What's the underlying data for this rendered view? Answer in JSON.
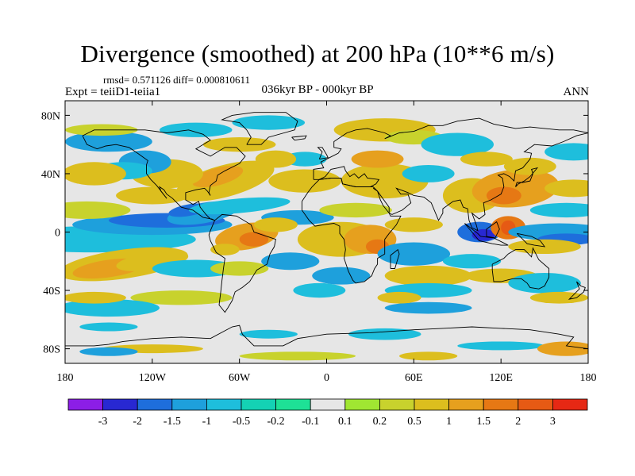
{
  "title": "Divergence (smoothed) at 200 hPa (10**6 m/s)",
  "stats_text": "rmsd= 0.571126 diff= 0.000810611",
  "experiment_text": "Expt = teiiD1-teiia1",
  "period_text": "036kyr BP - 000kyr BP",
  "season_text": "ANN",
  "chart_data": {
    "type": "heatmap",
    "projection": "cylindrical-equidistant",
    "xlim": [
      -180,
      180
    ],
    "ylim": [
      -90,
      90
    ],
    "x_ticks": [
      {
        "value": -180,
        "label": "180"
      },
      {
        "value": -120,
        "label": "120W"
      },
      {
        "value": -60,
        "label": "60W"
      },
      {
        "value": 0,
        "label": "0"
      },
      {
        "value": 60,
        "label": "60E"
      },
      {
        "value": 120,
        "label": "120E"
      },
      {
        "value": 180,
        "label": "180"
      }
    ],
    "y_ticks": [
      {
        "value": 80,
        "label": "80N"
      },
      {
        "value": 40,
        "label": "40N"
      },
      {
        "value": 0,
        "label": "0"
      },
      {
        "value": -40,
        "label": "40S"
      },
      {
        "value": -80,
        "label": "80S"
      }
    ],
    "colorbar": {
      "colors": [
        "#8c1ee6",
        "#2828d2",
        "#1e6edc",
        "#1ea0dc",
        "#1ebedc",
        "#14d2b4",
        "#1ee196",
        "#e6e6e6",
        "#a0e632",
        "#c8d22d",
        "#dcbe1e",
        "#e6a01e",
        "#e67814",
        "#e65a14",
        "#e62814"
      ],
      "labels": [
        "-3",
        "-2",
        "-1.5",
        "-1",
        "-0.5",
        "-0.2",
        "-0.1",
        "0.1",
        "0.2",
        "0.5",
        "1",
        "1.5",
        "2",
        "3"
      ]
    },
    "field_summary": [
      {
        "lon": -150,
        "lat": 0,
        "level": 7
      },
      {
        "lon": -110,
        "lat": 0,
        "level": 2
      },
      {
        "lon": -55,
        "lat": -3,
        "level": 12
      },
      {
        "lon": -140,
        "lat": -22,
        "level": 11
      },
      {
        "lon": -65,
        "lat": 30,
        "level": 11
      },
      {
        "lon": -85,
        "lat": 13,
        "level": 2
      },
      {
        "lon": 30,
        "lat": -5,
        "level": 11
      },
      {
        "lon": 105,
        "lat": 0,
        "level": 1
      },
      {
        "lon": 125,
        "lat": 3,
        "level": 13
      },
      {
        "lon": 160,
        "lat": -5,
        "level": 2
      },
      {
        "lon": 130,
        "lat": 30,
        "level": 11
      },
      {
        "lon": -20,
        "lat": 8,
        "level": 3
      },
      {
        "lon": 40,
        "lat": 35,
        "level": 10
      },
      {
        "lon": 160,
        "lat": -80,
        "level": 11
      },
      {
        "lon": -120,
        "lat": 45,
        "level": 4
      }
    ]
  }
}
